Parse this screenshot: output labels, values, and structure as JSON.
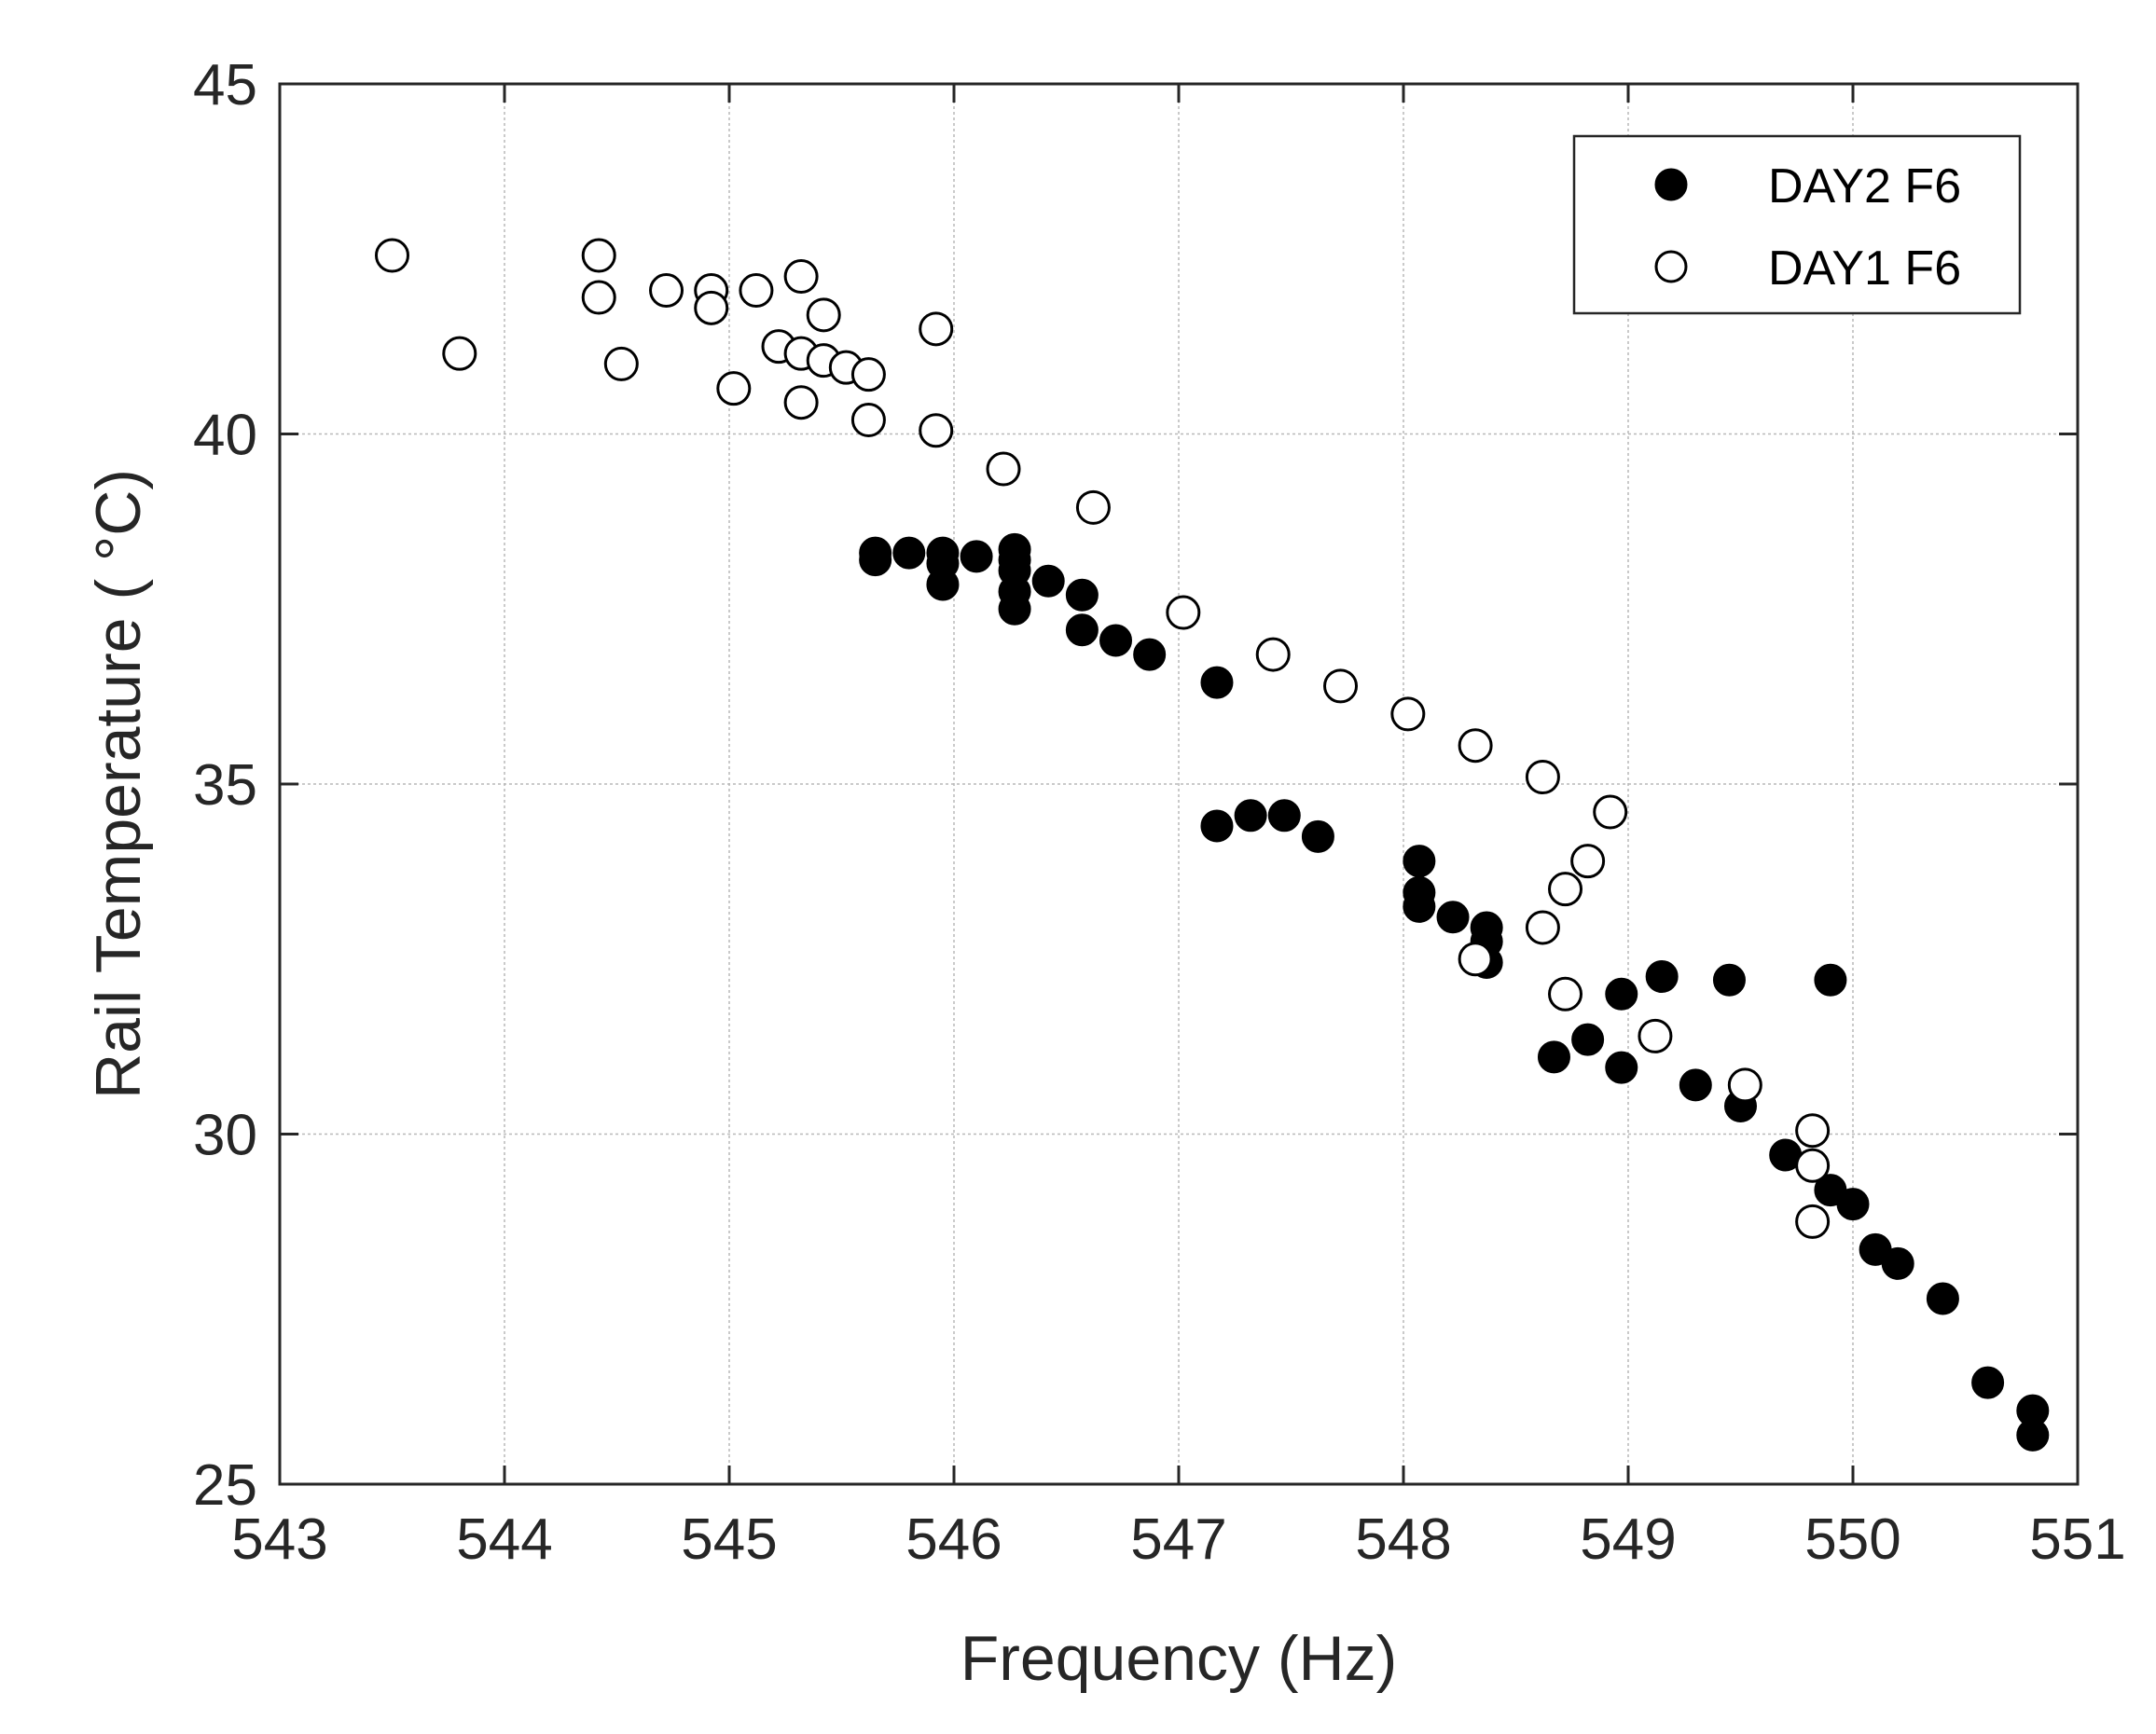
{
  "chart_data": {
    "type": "scatter",
    "title": "",
    "xlabel": "Frequency (Hz)",
    "ylabel": "Rail Temperature ( °C)",
    "xlim": [
      543,
      551
    ],
    "ylim": [
      25,
      45
    ],
    "xticks": [
      543,
      544,
      545,
      546,
      547,
      548,
      549,
      550,
      551
    ],
    "yticks": [
      25,
      30,
      35,
      40,
      45
    ],
    "grid": true,
    "legend_position": "top-right",
    "series": [
      {
        "name": "DAY2 F6",
        "marker": "filled-circle",
        "color": "#000000",
        "points": [
          [
            545.65,
            38.3
          ],
          [
            545.65,
            38.2
          ],
          [
            545.8,
            38.3
          ],
          [
            545.95,
            38.3
          ],
          [
            545.95,
            38.15
          ],
          [
            545.95,
            37.85
          ],
          [
            546.1,
            38.25
          ],
          [
            546.27,
            38.35
          ],
          [
            546.27,
            38.2
          ],
          [
            546.27,
            38.05
          ],
          [
            546.27,
            37.75
          ],
          [
            546.27,
            37.5
          ],
          [
            546.42,
            37.9
          ],
          [
            546.57,
            37.7
          ],
          [
            546.57,
            37.2
          ],
          [
            546.72,
            37.05
          ],
          [
            546.87,
            36.85
          ],
          [
            547.17,
            36.45
          ],
          [
            547.17,
            34.4
          ],
          [
            547.32,
            34.55
          ],
          [
            547.47,
            34.55
          ],
          [
            547.62,
            34.25
          ],
          [
            548.07,
            33.9
          ],
          [
            548.07,
            33.45
          ],
          [
            548.07,
            33.25
          ],
          [
            548.22,
            33.1
          ],
          [
            548.37,
            32.95
          ],
          [
            548.37,
            32.75
          ],
          [
            548.37,
            32.45
          ],
          [
            548.67,
            31.1
          ],
          [
            548.82,
            31.35
          ],
          [
            548.97,
            32.0
          ],
          [
            548.97,
            30.95
          ],
          [
            549.15,
            32.25
          ],
          [
            549.3,
            30.7
          ],
          [
            549.45,
            32.2
          ],
          [
            549.5,
            30.4
          ],
          [
            549.7,
            29.7
          ],
          [
            549.9,
            32.2
          ],
          [
            549.9,
            29.2
          ],
          [
            550.0,
            29.0
          ],
          [
            550.1,
            28.35
          ],
          [
            550.2,
            28.15
          ],
          [
            550.4,
            27.65
          ],
          [
            550.6,
            26.45
          ],
          [
            550.8,
            26.05
          ],
          [
            550.8,
            25.7
          ]
        ]
      },
      {
        "name": "DAY1 F6",
        "marker": "open-circle",
        "color": "#000000",
        "points": [
          [
            543.5,
            42.55
          ],
          [
            543.8,
            41.15
          ],
          [
            544.42,
            42.55
          ],
          [
            544.42,
            41.95
          ],
          [
            544.52,
            41.0
          ],
          [
            544.72,
            42.05
          ],
          [
            544.92,
            42.05
          ],
          [
            544.92,
            41.8
          ],
          [
            545.02,
            40.65
          ],
          [
            545.12,
            42.05
          ],
          [
            545.22,
            41.25
          ],
          [
            545.32,
            42.25
          ],
          [
            545.32,
            41.15
          ],
          [
            545.32,
            40.45
          ],
          [
            545.42,
            41.7
          ],
          [
            545.42,
            41.05
          ],
          [
            545.52,
            40.95
          ],
          [
            545.62,
            40.85
          ],
          [
            545.62,
            40.2
          ],
          [
            545.92,
            41.5
          ],
          [
            545.92,
            40.05
          ],
          [
            546.22,
            39.5
          ],
          [
            546.62,
            38.95
          ],
          [
            547.02,
            37.45
          ],
          [
            547.42,
            36.85
          ],
          [
            547.72,
            36.4
          ],
          [
            548.02,
            36.0
          ],
          [
            548.32,
            35.55
          ],
          [
            548.62,
            35.1
          ],
          [
            548.62,
            32.95
          ],
          [
            548.72,
            32.0
          ],
          [
            548.72,
            33.5
          ],
          [
            548.82,
            33.9
          ],
          [
            548.92,
            34.6
          ],
          [
            549.12,
            31.4
          ],
          [
            549.52,
            30.7
          ],
          [
            549.82,
            30.05
          ],
          [
            549.82,
            29.55
          ],
          [
            549.82,
            28.75
          ],
          [
            548.32,
            32.5
          ]
        ]
      }
    ]
  }
}
